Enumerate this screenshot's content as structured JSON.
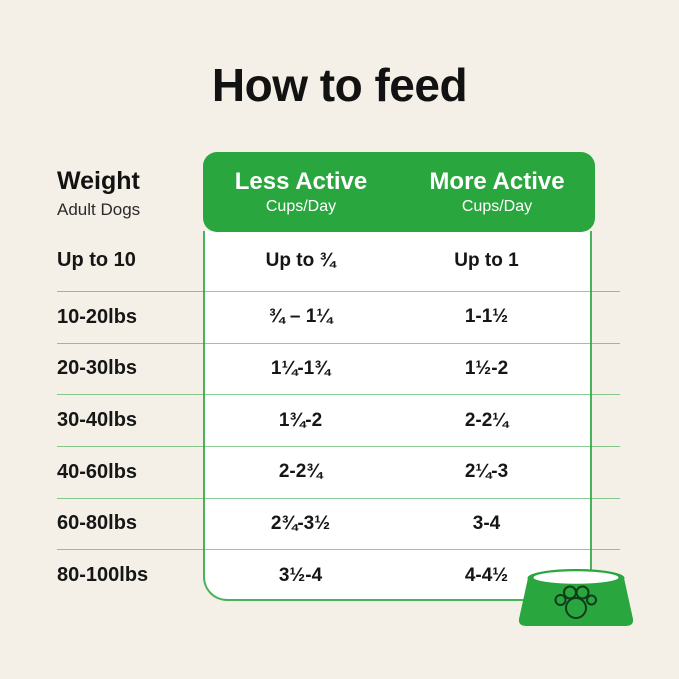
{
  "title": "How to feed",
  "colors": {
    "background": "#F4F0E7",
    "accent_green": "#2AA63F",
    "table_line_green": "#6CB787",
    "text": "#161616",
    "header_text": "#FFFFFF",
    "paw_outline": "#123B1C"
  },
  "weight_header": {
    "title": "Weight",
    "subtitle": "Adult Dogs"
  },
  "chart_data": {
    "type": "table",
    "title": "How to feed",
    "columns": [
      "Weight (Adult Dogs)",
      "Less Active Cups/Day",
      "More Active Cups/Day"
    ],
    "header": [
      {
        "label": "Less Active",
        "sublabel": "Cups/Day"
      },
      {
        "label": "More Active",
        "sublabel": "Cups/Day"
      }
    ],
    "rows": [
      {
        "weight": "Up to 10",
        "less_active": "Up to ¾",
        "more_active": "Up to 1"
      },
      {
        "weight": "10-20lbs",
        "less_active": "¾ – 1¼",
        "more_active": "1-1½"
      },
      {
        "weight": "20-30lbs",
        "less_active": "1¼-1¾",
        "more_active": "1½-2"
      },
      {
        "weight": "30-40lbs",
        "less_active": "1¾-2",
        "more_active": "2-2¼"
      },
      {
        "weight": "40-60lbs",
        "less_active": "2-2¾",
        "more_active": "2¼-3"
      },
      {
        "weight": "60-80lbs",
        "less_active": "2¾-3½",
        "more_active": "3-4"
      },
      {
        "weight": "80-100lbs",
        "less_active": "3½-4",
        "more_active": "4-4½"
      }
    ]
  },
  "footer": {
    "bowl_icon": "dog-bowl-with-paw-icon"
  }
}
